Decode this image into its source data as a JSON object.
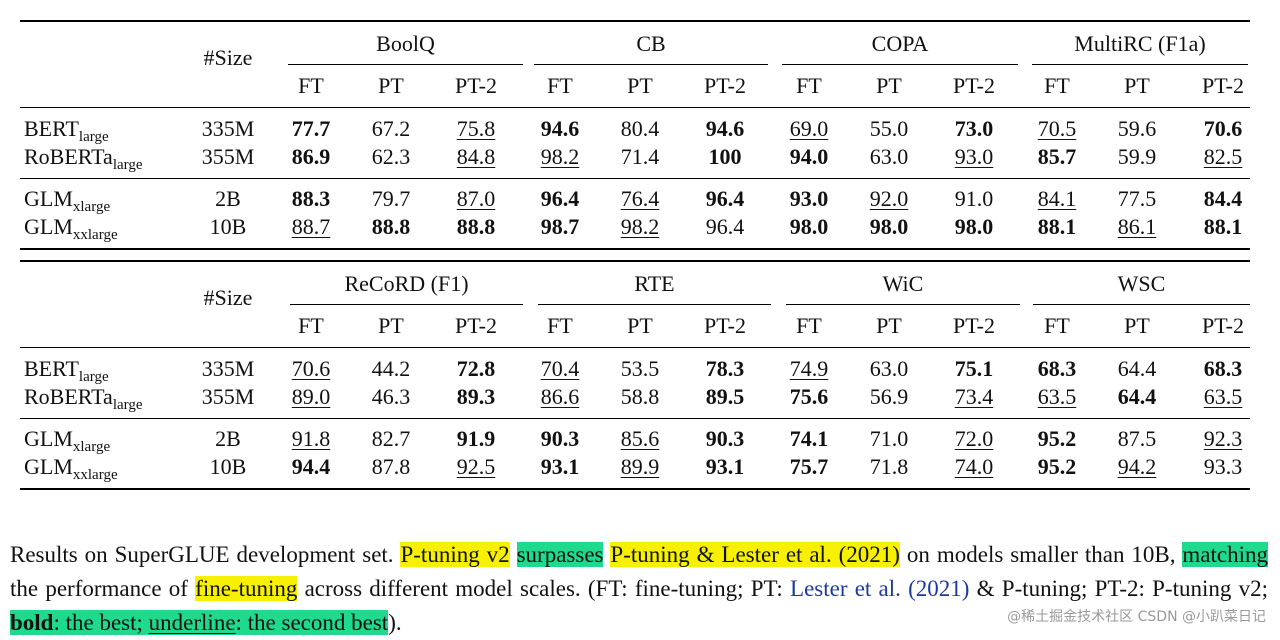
{
  "blocks": [
    {
      "groups": [
        "BoolQ",
        "CB",
        "COPA",
        "MultiRC (F1a)"
      ],
      "rows": [
        {
          "name": "BERT",
          "sub": "large",
          "size": "335M",
          "vals": [
            [
              "77.7",
              "b"
            ],
            [
              "67.2",
              ""
            ],
            [
              "75.8",
              "u"
            ],
            [
              "94.6",
              "b"
            ],
            [
              "80.4",
              ""
            ],
            [
              "94.6",
              "b"
            ],
            [
              "69.0",
              "u"
            ],
            [
              "55.0",
              ""
            ],
            [
              "73.0",
              "b"
            ],
            [
              "70.5",
              "u"
            ],
            [
              "59.6",
              ""
            ],
            [
              "70.6",
              "b"
            ]
          ]
        },
        {
          "name": "RoBERTa",
          "sub": "large",
          "size": "355M",
          "vals": [
            [
              "86.9",
              "b"
            ],
            [
              "62.3",
              ""
            ],
            [
              "84.8",
              "u"
            ],
            [
              "98.2",
              "u"
            ],
            [
              "71.4",
              ""
            ],
            [
              "100",
              "b"
            ],
            [
              "94.0",
              "b"
            ],
            [
              "63.0",
              ""
            ],
            [
              "93.0",
              "u"
            ],
            [
              "85.7",
              "b"
            ],
            [
              "59.9",
              ""
            ],
            [
              "82.5",
              "u"
            ]
          ]
        },
        {
          "name": "GLM",
          "sub": "xlarge",
          "size": "2B",
          "vals": [
            [
              "88.3",
              "b"
            ],
            [
              "79.7",
              ""
            ],
            [
              "87.0",
              "u"
            ],
            [
              "96.4",
              "b"
            ],
            [
              "76.4",
              "u"
            ],
            [
              "96.4",
              "b"
            ],
            [
              "93.0",
              "b"
            ],
            [
              "92.0",
              "u"
            ],
            [
              "91.0",
              ""
            ],
            [
              "84.1",
              "u"
            ],
            [
              "77.5",
              ""
            ],
            [
              "84.4",
              "b"
            ]
          ]
        },
        {
          "name": "GLM",
          "sub": "xxlarge",
          "size": "10B",
          "vals": [
            [
              "88.7",
              "u"
            ],
            [
              "88.8",
              "b"
            ],
            [
              "88.8",
              "b"
            ],
            [
              "98.7",
              "b"
            ],
            [
              "98.2",
              "u"
            ],
            [
              "96.4",
              ""
            ],
            [
              "98.0",
              "b"
            ],
            [
              "98.0",
              "b"
            ],
            [
              "98.0",
              "b"
            ],
            [
              "88.1",
              "b"
            ],
            [
              "86.1",
              "u"
            ],
            [
              "88.1",
              "b"
            ]
          ]
        }
      ]
    },
    {
      "groups": [
        "ReCoRD (F1)",
        "RTE",
        "WiC",
        "WSC"
      ],
      "rows": [
        {
          "name": "BERT",
          "sub": "large",
          "size": "335M",
          "vals": [
            [
              "70.6",
              "u"
            ],
            [
              "44.2",
              ""
            ],
            [
              "72.8",
              "b"
            ],
            [
              "70.4",
              "u"
            ],
            [
              "53.5",
              ""
            ],
            [
              "78.3",
              "b"
            ],
            [
              "74.9",
              "u"
            ],
            [
              "63.0",
              ""
            ],
            [
              "75.1",
              "b"
            ],
            [
              "68.3",
              "b"
            ],
            [
              "64.4",
              ""
            ],
            [
              "68.3",
              "b"
            ]
          ]
        },
        {
          "name": "RoBERTa",
          "sub": "large",
          "size": "355M",
          "vals": [
            [
              "89.0",
              "u"
            ],
            [
              "46.3",
              ""
            ],
            [
              "89.3",
              "b"
            ],
            [
              "86.6",
              "u"
            ],
            [
              "58.8",
              ""
            ],
            [
              "89.5",
              "b"
            ],
            [
              "75.6",
              "b"
            ],
            [
              "56.9",
              ""
            ],
            [
              "73.4",
              "u"
            ],
            [
              "63.5",
              "u"
            ],
            [
              "64.4",
              "b"
            ],
            [
              "63.5",
              "u"
            ]
          ]
        },
        {
          "name": "GLM",
          "sub": "xlarge",
          "size": "2B",
          "vals": [
            [
              "91.8",
              "u"
            ],
            [
              "82.7",
              ""
            ],
            [
              "91.9",
              "b"
            ],
            [
              "90.3",
              "b"
            ],
            [
              "85.6",
              "u"
            ],
            [
              "90.3",
              "b"
            ],
            [
              "74.1",
              "b"
            ],
            [
              "71.0",
              ""
            ],
            [
              "72.0",
              "u"
            ],
            [
              "95.2",
              "b"
            ],
            [
              "87.5",
              ""
            ],
            [
              "92.3",
              "u"
            ]
          ]
        },
        {
          "name": "GLM",
          "sub": "xxlarge",
          "size": "10B",
          "vals": [
            [
              "94.4",
              "b"
            ],
            [
              "87.8",
              ""
            ],
            [
              "92.5",
              "u"
            ],
            [
              "93.1",
              "b"
            ],
            [
              "89.9",
              "u"
            ],
            [
              "93.1",
              "b"
            ],
            [
              "75.7",
              "b"
            ],
            [
              "71.8",
              ""
            ],
            [
              "74.0",
              "u"
            ],
            [
              "95.2",
              "b"
            ],
            [
              "94.2",
              "u"
            ],
            [
              "93.3",
              ""
            ]
          ]
        }
      ]
    }
  ],
  "size_header": "#Size",
  "sub_headers": [
    "FT",
    "PT",
    "PT-2"
  ],
  "caption": {
    "t1": "Results on SuperGLUE development set. ",
    "h1": "P-tuning v2",
    "t2": " ",
    "h2": "surpasses",
    "t3": " ",
    "h3": "P-tuning & Lester et al. (2021)",
    "t4": " on models smaller than 10B, ",
    "h4": "matching",
    "t5": " the performance of ",
    "h5": "fine-tuning",
    "t6": " across different model scales.  (FT: fine-tuning; PT: ",
    "link": "Lester et al. (2021)",
    "t7": " & P-tuning; PT-2: P-tuning v2; ",
    "h6a": "bold",
    "h6b": ": the best; ",
    "h6c": "underline",
    "h6d": ": the second best",
    "t8": ")."
  },
  "watermark": "@稀土掘金技术社区 CSDN @小趴菜日记"
}
